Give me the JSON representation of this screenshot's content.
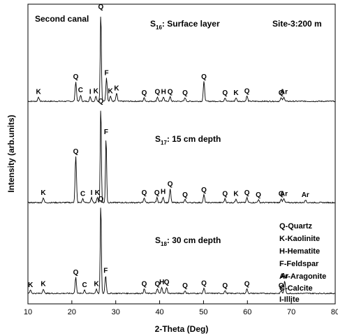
{
  "chart_data": {
    "type": "line",
    "xlabel": "2-Theta (Deg)",
    "ylabel": "Intensity (arb.units)",
    "xlim": [
      10,
      80
    ],
    "xticks": [
      10,
      20,
      30,
      40,
      50,
      60,
      70,
      80
    ],
    "grid": false,
    "corner_labels": {
      "left": "Second canal",
      "right": "Site-3:200 m"
    },
    "legend": {
      "placement": "bottom-right",
      "entries": [
        "Q-Quartz",
        "K-Kaolinite",
        "H-Hematite",
        "F-Feldspar",
        "Ar-Aragonite",
        "C-Calcite",
        "I-Illite"
      ]
    },
    "series": [
      {
        "name": "S16: Surface layer",
        "title": {
          "main": "S",
          "sub": "16",
          "rest": ": Surface layer"
        },
        "baseline": 0,
        "peaks": [
          {
            "x": 12.4,
            "h": 0.05,
            "label": "K"
          },
          {
            "x": 20.9,
            "h": 0.22,
            "label": "Q"
          },
          {
            "x": 22.0,
            "h": 0.07,
            "label": "C"
          },
          {
            "x": 24.2,
            "h": 0.05,
            "label": "I"
          },
          {
            "x": 25.5,
            "h": 0.06,
            "label": "K"
          },
          {
            "x": 26.6,
            "h": 1.0,
            "label": "Q"
          },
          {
            "x": 27.9,
            "h": 0.26,
            "label": "F"
          },
          {
            "x": 28.8,
            "h": 0.06,
            "label": "K"
          },
          {
            "x": 30.2,
            "h": 0.09,
            "label": "K"
          },
          {
            "x": 36.5,
            "h": 0.04,
            "label": "Q"
          },
          {
            "x": 39.5,
            "h": 0.05,
            "label": "Q"
          },
          {
            "x": 40.9,
            "h": 0.05,
            "label": "H"
          },
          {
            "x": 42.4,
            "h": 0.05,
            "label": "Q"
          },
          {
            "x": 45.8,
            "h": 0.04,
            "label": "Q"
          },
          {
            "x": 50.1,
            "h": 0.22,
            "label": "Q"
          },
          {
            "x": 54.9,
            "h": 0.04,
            "label": "Q"
          },
          {
            "x": 57.4,
            "h": 0.04,
            "label": "K"
          },
          {
            "x": 59.9,
            "h": 0.06,
            "label": "Q"
          },
          {
            "x": 67.7,
            "h": 0.04,
            "label": "Q"
          },
          {
            "x": 68.3,
            "h": 0.05,
            "label": "Ar"
          }
        ]
      },
      {
        "name": "S17: 15 cm depth",
        "title": {
          "main": "S",
          "sub": "17",
          "rest": ": 15 cm depth"
        },
        "baseline": 0,
        "peaks": [
          {
            "x": 13.5,
            "h": 0.05,
            "label": "K"
          },
          {
            "x": 20.9,
            "h": 0.48,
            "label": "Q"
          },
          {
            "x": 22.5,
            "h": 0.04,
            "label": "C"
          },
          {
            "x": 24.5,
            "h": 0.05,
            "label": "I"
          },
          {
            "x": 25.8,
            "h": 0.05,
            "label": "K"
          },
          {
            "x": 26.6,
            "h": 1.0,
            "label": "Q"
          },
          {
            "x": 27.8,
            "h": 0.68,
            "label": "F"
          },
          {
            "x": 36.5,
            "h": 0.05,
            "label": "Q"
          },
          {
            "x": 39.4,
            "h": 0.05,
            "label": "Q"
          },
          {
            "x": 40.8,
            "h": 0.06,
            "label": "H"
          },
          {
            "x": 42.4,
            "h": 0.14,
            "label": "Q"
          },
          {
            "x": 45.8,
            "h": 0.03,
            "label": "Q"
          },
          {
            "x": 50.1,
            "h": 0.08,
            "label": "Q"
          },
          {
            "x": 54.9,
            "h": 0.04,
            "label": "Q"
          },
          {
            "x": 57.4,
            "h": 0.04,
            "label": "K"
          },
          {
            "x": 59.9,
            "h": 0.05,
            "label": "Q"
          },
          {
            "x": 62.5,
            "h": 0.03,
            "label": "Q"
          },
          {
            "x": 67.7,
            "h": 0.04,
            "label": "Q"
          },
          {
            "x": 68.3,
            "h": 0.04,
            "label": "Ar"
          },
          {
            "x": 73.2,
            "h": 0.03,
            "label": "Ar"
          }
        ]
      },
      {
        "name": "S18: 30 cm depth",
        "title": {
          "main": "S",
          "sub": "18",
          "rest": ": 30 cm depth"
        },
        "baseline": 0,
        "peaks": [
          {
            "x": 10.6,
            "h": 0.04,
            "label": "K"
          },
          {
            "x": 13.5,
            "h": 0.05,
            "label": "K"
          },
          {
            "x": 20.9,
            "h": 0.18,
            "label": "Q"
          },
          {
            "x": 22.9,
            "h": 0.04,
            "label": "C"
          },
          {
            "x": 25.6,
            "h": 0.05,
            "label": "K"
          },
          {
            "x": 26.6,
            "h": 1.0,
            "label": "Q"
          },
          {
            "x": 27.7,
            "h": 0.2,
            "label": "F"
          },
          {
            "x": 36.5,
            "h": 0.05,
            "label": "Q"
          },
          {
            "x": 39.5,
            "h": 0.05,
            "label": "Q"
          },
          {
            "x": 40.5,
            "h": 0.07,
            "label": "H"
          },
          {
            "x": 41.6,
            "h": 0.07,
            "label": "Q"
          },
          {
            "x": 45.8,
            "h": 0.03,
            "label": "Q"
          },
          {
            "x": 50.1,
            "h": 0.06,
            "label": "Q"
          },
          {
            "x": 54.9,
            "h": 0.03,
            "label": "Q"
          },
          {
            "x": 59.9,
            "h": 0.05,
            "label": "Q"
          },
          {
            "x": 67.7,
            "h": 0.03,
            "label": "Q"
          },
          {
            "x": 68.5,
            "h": 0.14,
            "label": "Ar"
          }
        ]
      }
    ]
  }
}
